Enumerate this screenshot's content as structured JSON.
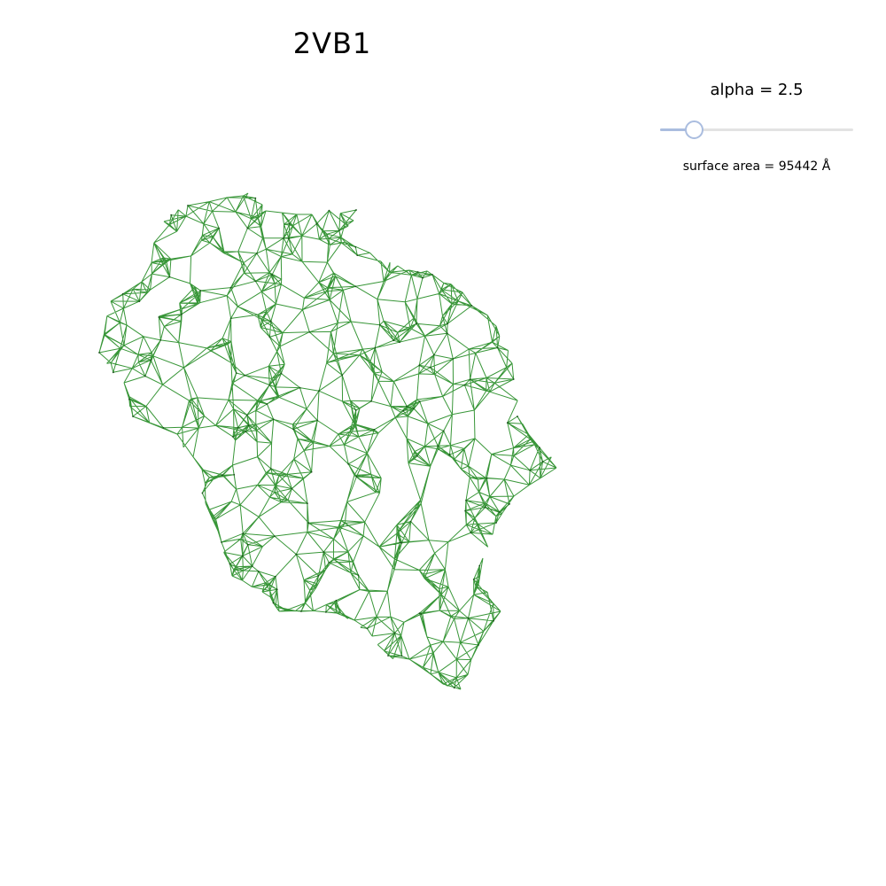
{
  "figure": {
    "title": "2VB1"
  },
  "slider": {
    "label": "alpha = 2.5",
    "value": 2.5,
    "fraction": 0.18,
    "track_color": "#e3e3e3",
    "accent_color": "#aabddf"
  },
  "surface": {
    "readout": "surface area = 95442  Å"
  },
  "mesh": {
    "color": "#228b22",
    "dot_color": "#1a4a1a"
  }
}
